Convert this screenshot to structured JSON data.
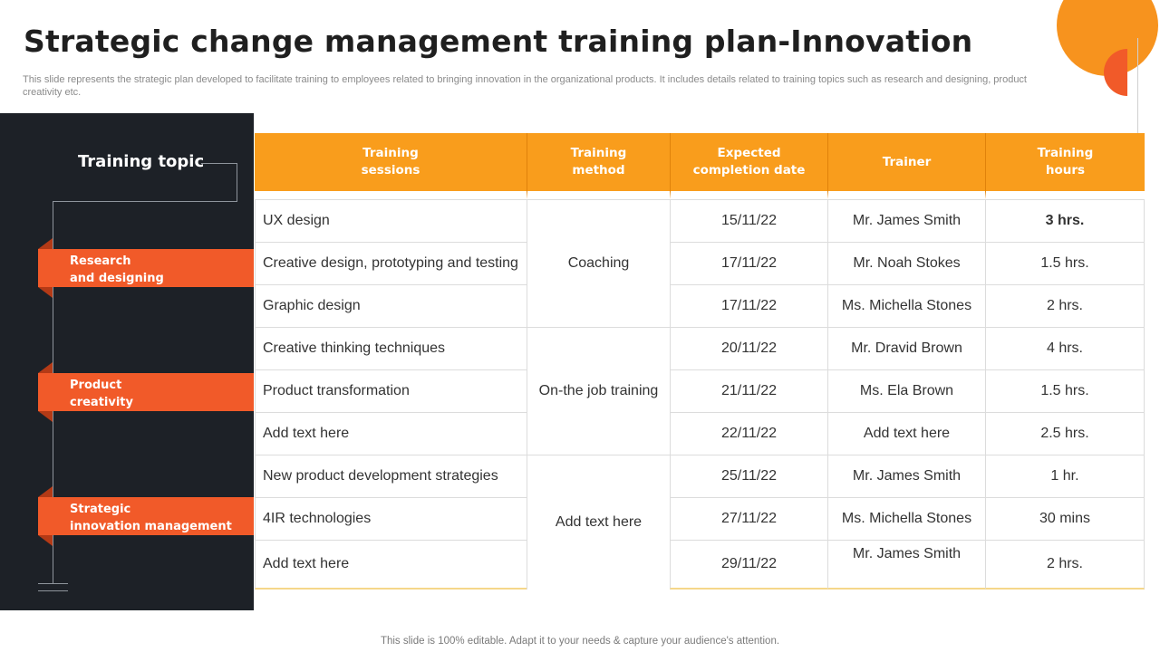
{
  "title": "Strategic change management training plan-Innovation",
  "subtitle": "This slide represents the strategic plan developed to facilitate training to employees related to bringing innovation in the organizational products. It includes details related to training topics such as research and designing, product creativity etc.",
  "sidebar": {
    "heading": "Training topic",
    "topics": [
      {
        "line1": "Research",
        "line2": "and designing"
      },
      {
        "line1": "Product",
        "line2": "creativity"
      },
      {
        "line1": "Strategic",
        "line2": "innovation management"
      }
    ]
  },
  "table": {
    "headers": [
      {
        "line1": "Training",
        "line2": "sessions"
      },
      {
        "line1": "Training",
        "line2": "method"
      },
      {
        "line1": "Expected",
        "line2": "completion date"
      },
      {
        "line1": "Trainer",
        "line2": ""
      },
      {
        "line1": "Training",
        "line2": "hours"
      }
    ],
    "methods": [
      "Coaching",
      "On-the job training",
      "Add text here"
    ],
    "rows": [
      {
        "session": "UX design",
        "date": "15/11/22",
        "trainer": "Mr. James Smith",
        "hours": "3 hrs."
      },
      {
        "session": "Creative design, prototyping and testing",
        "date": "17/11/22",
        "trainer": "Mr. Noah Stokes",
        "hours": "1.5 hrs."
      },
      {
        "session": "Graphic design",
        "date": "17/11/22",
        "trainer": "Ms. Michella Stones",
        "hours": "2 hrs."
      },
      {
        "session": "Creative thinking techniques",
        "date": "20/11/22",
        "trainer": "Mr. Dravid Brown",
        "hours": "4 hrs."
      },
      {
        "session": "Product transformation",
        "date": "21/11/22",
        "trainer": "Ms. Ela Brown",
        "hours": "1.5 hrs."
      },
      {
        "session": "Add text here",
        "date": "22/11/22",
        "trainer": "Add text here",
        "hours": "2.5 hrs."
      },
      {
        "session": "New product development strategies",
        "date": "25/11/22",
        "trainer": "Mr. James Smith",
        "hours": "1 hr."
      },
      {
        "session": "4IR technologies",
        "date": "27/11/22",
        "trainer": "Ms. Michella Stones",
        "hours": "30 mins"
      },
      {
        "session": "Add text here",
        "date": "29/11/22",
        "trainer": "Mr. James Smith",
        "hours": "2 hrs."
      }
    ]
  },
  "footer": "This slide is 100% editable. Adapt it to your needs & capture your audience's attention.",
  "colors": {
    "orange": "#f99d1c",
    "red_orange": "#f15a29",
    "dark_panel": "#1d2127"
  }
}
